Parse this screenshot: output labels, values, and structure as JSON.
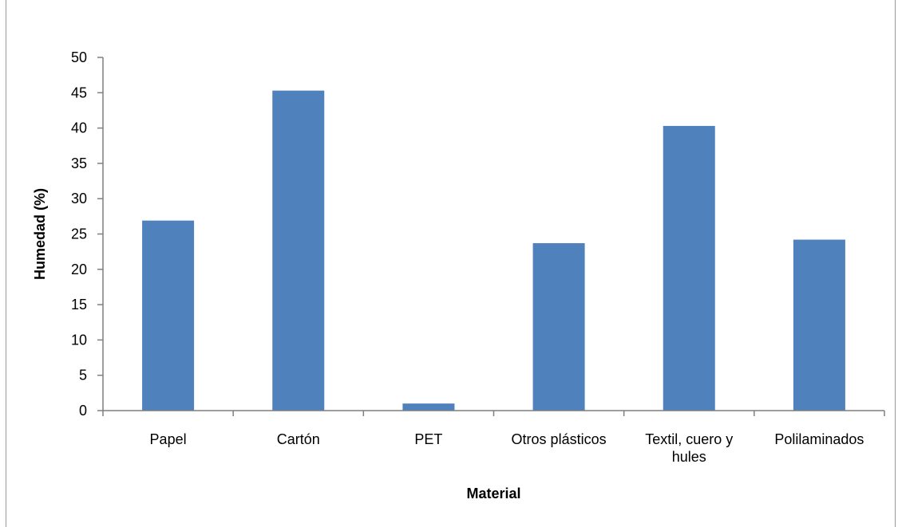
{
  "chart_data": {
    "type": "bar",
    "categories": [
      [
        "Papel"
      ],
      [
        "Cartón"
      ],
      [
        "PET"
      ],
      [
        "Otros plásticos"
      ],
      [
        "Textil, cuero y",
        "hules"
      ],
      [
        "Polilaminados"
      ]
    ],
    "values": [
      26.9,
      45.3,
      1.0,
      23.7,
      40.3,
      24.2
    ],
    "title": "",
    "xlabel": "Material",
    "ylabel": "Humedad (%)",
    "ylim": [
      0,
      50
    ],
    "yticks": [
      0,
      5,
      10,
      15,
      20,
      25,
      30,
      35,
      40,
      45,
      50
    ],
    "grid": false,
    "legend": "none",
    "colors": {
      "bar": "#4f81bd",
      "axis": "#7f7f7f"
    }
  }
}
